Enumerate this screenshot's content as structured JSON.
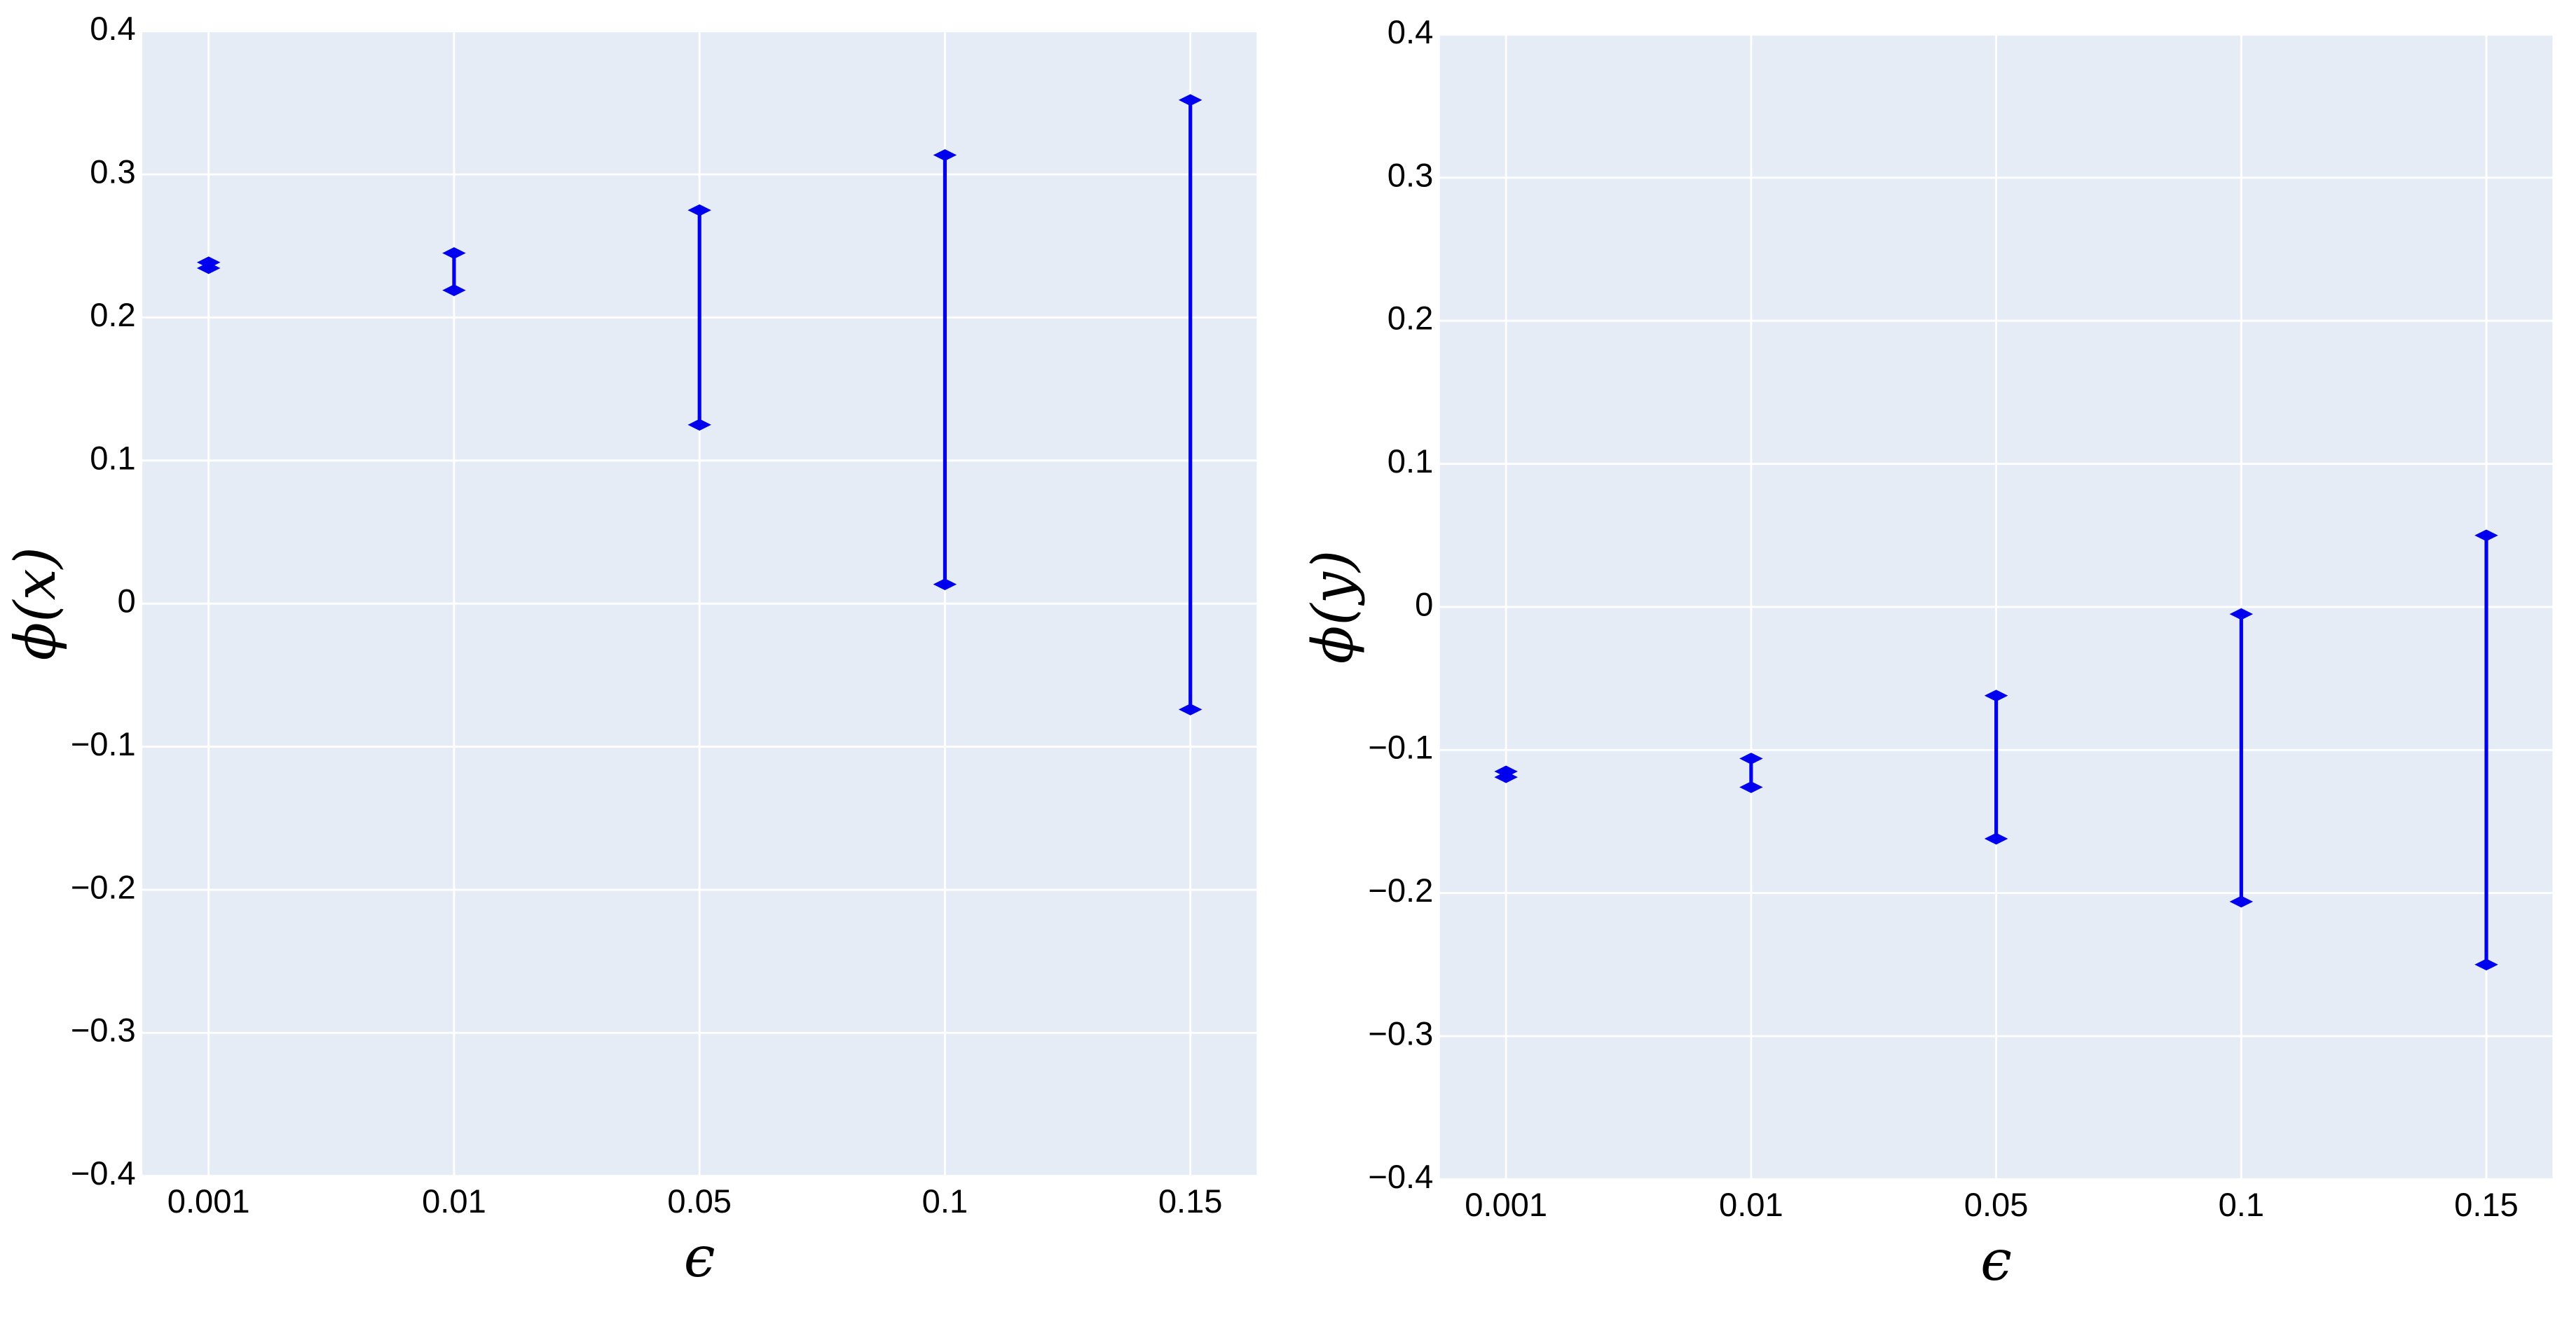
{
  "chart_data": [
    {
      "type": "errorbar",
      "xlabel": "ϵ",
      "ylabel": "ϕ(x)",
      "color": "#0000ee",
      "grid": true,
      "categories": [
        "0.001",
        "0.01",
        "0.05",
        "0.1",
        "0.15"
      ],
      "values": [
        0.2365,
        0.232,
        0.2,
        0.1635,
        0.139
      ],
      "errors": [
        0.002,
        0.013,
        0.075,
        0.15,
        0.213
      ],
      "ylim": [
        -0.4,
        0.4
      ],
      "yticks": [
        {
          "value": -0.4,
          "label": "−0.4"
        },
        {
          "value": -0.3,
          "label": "−0.3"
        },
        {
          "value": -0.2,
          "label": "−0.2"
        },
        {
          "value": -0.1,
          "label": "−0.1"
        },
        0,
        0.1,
        0.2,
        0.3,
        0.4
      ]
    },
    {
      "type": "errorbar",
      "xlabel": "ϵ",
      "ylabel": "ϕ(y)",
      "color": "#0000ee",
      "grid": true,
      "categories": [
        "0.001",
        "0.01",
        "0.05",
        "0.1",
        "0.15"
      ],
      "values": [
        -0.117,
        -0.116,
        -0.112,
        -0.1055,
        -0.1
      ],
      "errors": [
        0.002,
        0.01,
        0.05,
        0.1005,
        0.15
      ],
      "ylim": [
        -0.4,
        0.4
      ],
      "yticks": [
        {
          "value": -0.4,
          "label": "−0.4"
        },
        {
          "value": -0.3,
          "label": "−0.3"
        },
        {
          "value": -0.2,
          "label": "−0.2"
        },
        {
          "value": -0.1,
          "label": "−0.1"
        },
        0,
        0.1,
        0.2,
        0.3,
        0.4
      ]
    }
  ]
}
